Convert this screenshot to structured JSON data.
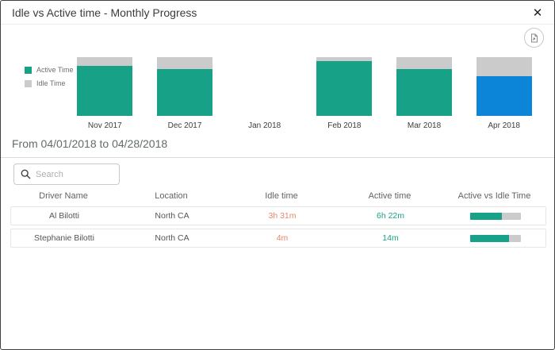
{
  "dialog": {
    "title": "Idle vs Active time - Monthly Progress",
    "close_glyph": "✕"
  },
  "toolbar": {
    "export_button": "export-chart-image"
  },
  "legend": {
    "items": [
      {
        "label": "Active Time",
        "color": "#17a288"
      },
      {
        "label": "Idle Time",
        "color": "#cbcbcb"
      }
    ]
  },
  "chart_data": {
    "type": "bar",
    "stacked": true,
    "categories": [
      "Nov 2017",
      "Dec 2017",
      "Jan 2018",
      "Feb 2018",
      "Mar 2018",
      "Apr 2018"
    ],
    "series": [
      {
        "name": "Active Time",
        "values": [
          85,
          80,
          0,
          93,
          80,
          68
        ]
      },
      {
        "name": "Idle Time",
        "values": [
          15,
          20,
          0,
          7,
          20,
          32
        ]
      }
    ],
    "units": "percent of month total",
    "highlighted_category": "Apr 2018",
    "legend_position": "left",
    "grid": false,
    "ylim": [
      0,
      100
    ]
  },
  "period": {
    "label": "From 04/01/2018 to 04/28/2018"
  },
  "search": {
    "placeholder": "Search",
    "value": ""
  },
  "table": {
    "columns": [
      "Driver Name",
      "Location",
      "Idle time",
      "Active time",
      "Active vs Idle Time"
    ],
    "rows": [
      {
        "driver": "Al Bilotti",
        "location": "North CA",
        "idle": "3h 31m",
        "active": "6h 22m",
        "active_pct": 64
      },
      {
        "driver": "Stephanie Bilotti",
        "location": "North CA",
        "idle": "4m",
        "active": "14m",
        "active_pct": 78
      }
    ]
  },
  "colors": {
    "active_time": "#17a288",
    "idle_time": "#cbcbcb",
    "selected_month": "#0c85d8",
    "idle_value_text": "#e8876a",
    "active_value_text": "#18a287",
    "dialog_border": "#3f3f3f"
  }
}
